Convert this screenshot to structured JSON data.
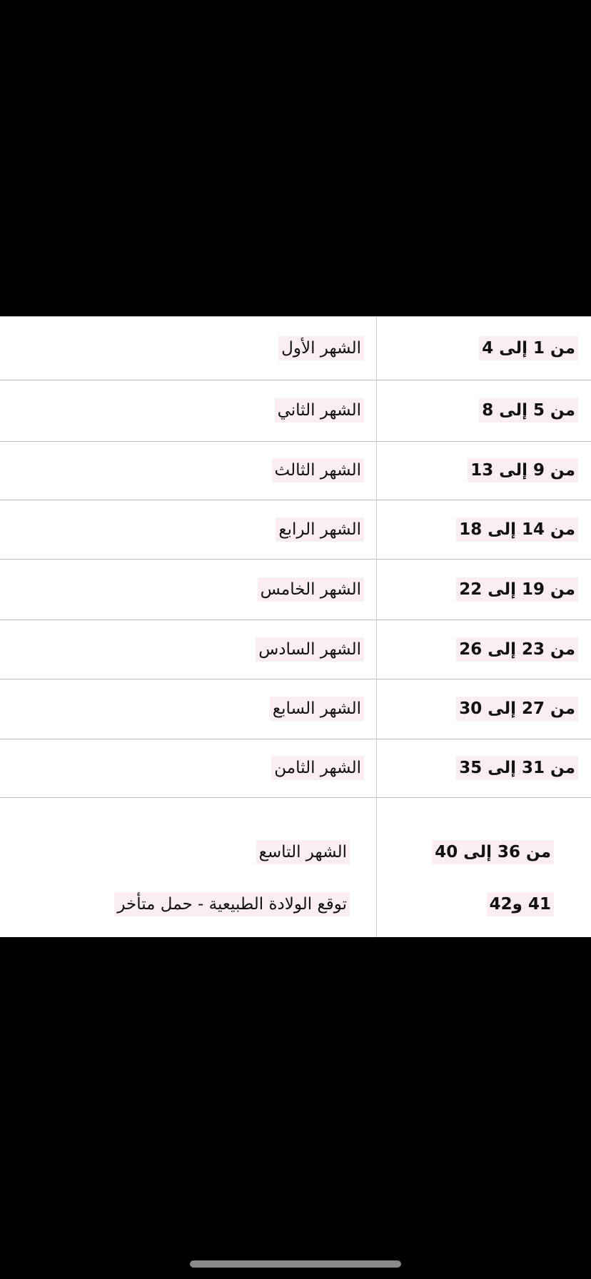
{
  "table": {
    "rows": [
      [
        "من 1 إلى 4",
        "الشهر الأول"
      ],
      [
        "من 5 إلى 8",
        "الشهر الثاني"
      ],
      [
        "من 9 إلى 13",
        "الشهر الثالث"
      ],
      [
        "من 14 إلى 18",
        "الشهر الرابع"
      ],
      [
        "من 19 إلى 22",
        "الشهر الخامس"
      ],
      [
        "من 23 إلى 26",
        "الشهر السادس"
      ],
      [
        "من 27 إلى 30",
        "الشهر السابع"
      ],
      [
        "من 31 إلى 35",
        "الشهر الثامن"
      ],
      [
        "من 36 إلى 40",
        "الشهر التاسع"
      ],
      [
        "41 و42",
        "توقع الولادة الطبيعية - حمل متأخر"
      ]
    ]
  }
}
